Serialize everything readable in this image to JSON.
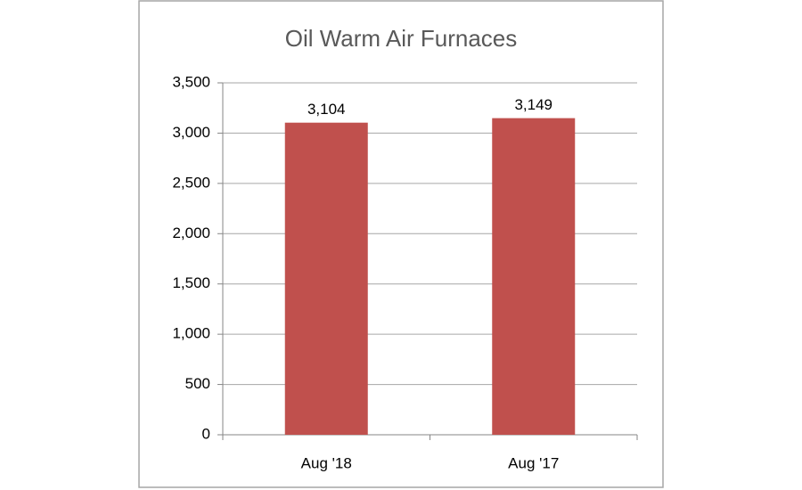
{
  "chart_data": {
    "type": "bar",
    "title": "Oil Warm Air Furnaces",
    "categories": [
      "Aug '18",
      "Aug '17"
    ],
    "values": [
      3104,
      3149
    ],
    "value_labels": [
      "3,104",
      "3,149"
    ],
    "color": "#c0504d",
    "ylim": [
      0,
      3500
    ],
    "yticks": [
      0,
      500,
      {
        "value": 1000,
        "label": "1,000"
      },
      {
        "value": 1500,
        "label": "1,500"
      },
      {
        "value": 2000,
        "label": "2,000"
      },
      {
        "value": 2500,
        "label": "2,500"
      },
      {
        "value": 3000,
        "label": "3,000"
      },
      {
        "value": 3500,
        "label": "3,500"
      }
    ],
    "grid": true
  }
}
